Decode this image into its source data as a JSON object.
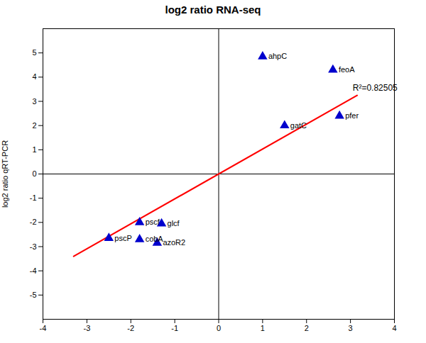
{
  "chart_data": {
    "type": "scatter",
    "title": "log2 ratio RNA-seq",
    "ylabel": "log2 ratio qRT-PCR",
    "points": [
      {
        "label": "ahpC",
        "x": 1.0,
        "y": 4.85
      },
      {
        "label": "feoA",
        "x": 2.6,
        "y": 4.3
      },
      {
        "label": "gatC",
        "x": 1.5,
        "y": 2.0
      },
      {
        "label": "pfer",
        "x": 2.75,
        "y": 2.4
      },
      {
        "label": "pscf",
        "x": -1.8,
        "y": -2.0
      },
      {
        "label": "glcf",
        "x": -1.3,
        "y": -2.05
      },
      {
        "label": "pscP",
        "x": -2.5,
        "y": -2.65
      },
      {
        "label": "cobA",
        "x": -1.8,
        "y": -2.7
      },
      {
        "label": "azoR2",
        "x": -1.4,
        "y": -2.85
      }
    ],
    "color": "#0000CD",
    "marker": "triangle",
    "line": {
      "x": [
        -3.3,
        3.15
      ],
      "y": [
        -3.399,
        3.2445
      ],
      "color": "#FF0000"
    },
    "annotations": [
      {
        "text": "R²=0.82505",
        "x": 3.05,
        "y": 3.55
      }
    ],
    "xlim": [
      -4,
      4
    ],
    "ylim": [
      -6,
      6
    ],
    "xticks": [
      -4,
      -3,
      -2,
      -1,
      0,
      1,
      2,
      3,
      4
    ],
    "yticks": [
      -5,
      -4,
      -3,
      -2,
      -1,
      0,
      1,
      2,
      3,
      4,
      5
    ]
  }
}
